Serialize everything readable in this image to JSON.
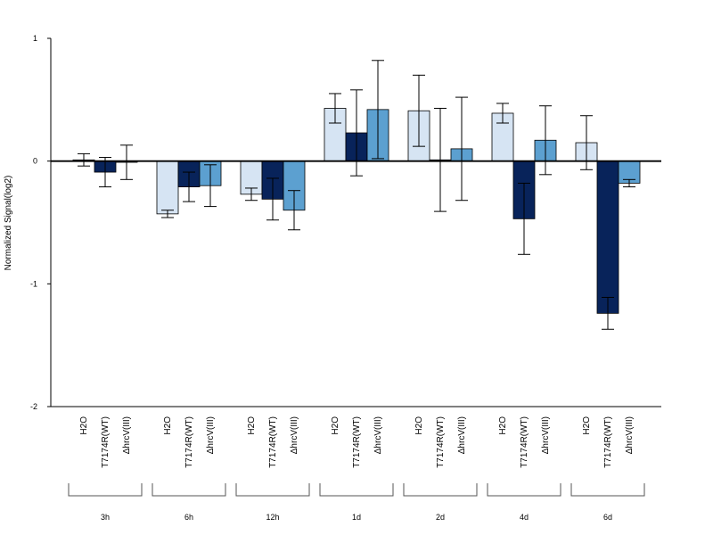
{
  "chart_data": {
    "type": "bar",
    "ylabel": "Normalized Signal(log2)",
    "ylim": [
      -2,
      1
    ],
    "y_ticks": [
      1,
      0,
      -1,
      -2
    ],
    "y_tick_labels": [
      "1",
      "0",
      "-1",
      "-2"
    ],
    "groups": [
      "3h",
      "6h",
      "12h",
      "1d",
      "2d",
      "4d",
      "6d"
    ],
    "series": [
      {
        "name": "H2O",
        "color": "#d6e4f3",
        "values": [
          0.01,
          -0.43,
          -0.27,
          0.43,
          0.41,
          0.39,
          0.15
        ],
        "error": [
          0.05,
          0.03,
          0.05,
          0.12,
          0.29,
          0.08,
          0.22
        ]
      },
      {
        "name": "T7174R(WT)",
        "color": "#08235a",
        "values": [
          -0.09,
          -0.21,
          -0.31,
          0.23,
          0.01,
          -0.47,
          -1.24
        ],
        "error": [
          0.12,
          0.12,
          0.17,
          0.35,
          0.42,
          0.29,
          0.13
        ]
      },
      {
        "name": "ΔhrcV(III)",
        "color": "#5ca0d0",
        "values": [
          -0.01,
          -0.2,
          -0.4,
          0.42,
          0.1,
          0.17,
          -0.18
        ],
        "error": [
          0.14,
          0.17,
          0.16,
          0.4,
          0.42,
          0.28,
          0.03
        ]
      }
    ],
    "grid": false,
    "legend": "none"
  }
}
